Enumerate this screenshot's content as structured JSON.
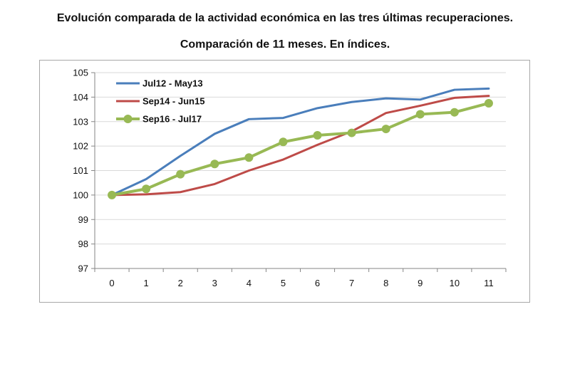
{
  "header": {
    "title": "Evolución comparada de la actividad económica en las tres últimas recuperaciones.",
    "subtitle": "Comparación de 11 meses. En índices."
  },
  "chart_data": {
    "type": "line",
    "title": "Evolución comparada de la actividad económica en las tres últimas recuperaciones.",
    "subtitle": "Comparación de 11 meses. En índices.",
    "xlabel": "",
    "ylabel": "",
    "x": [
      0,
      1,
      2,
      3,
      4,
      5,
      6,
      7,
      8,
      9,
      10,
      11
    ],
    "ylim": [
      97,
      105
    ],
    "yticks": [
      97,
      98,
      99,
      100,
      101,
      102,
      103,
      104,
      105
    ],
    "grid": "horizontal",
    "legend_position": "top-left",
    "series": [
      {
        "name": "Jul12 - May13",
        "color": "#4a7ebb",
        "markers": false,
        "values": [
          100,
          100.65,
          101.6,
          102.5,
          103.1,
          103.15,
          103.55,
          103.8,
          103.95,
          103.9,
          104.3,
          104.35
        ]
      },
      {
        "name": "Sep14 - Jun15",
        "color": "#be4b48",
        "markers": false,
        "values": [
          100,
          100.03,
          100.12,
          100.45,
          101.0,
          101.45,
          102.05,
          102.6,
          103.35,
          103.65,
          103.97,
          104.05
        ]
      },
      {
        "name": "Sep16 - Jul17",
        "color": "#98b954",
        "markers": true,
        "values": [
          100,
          100.25,
          100.85,
          101.27,
          101.53,
          102.17,
          102.44,
          102.54,
          102.7,
          103.3,
          103.38,
          103.75
        ]
      }
    ]
  }
}
